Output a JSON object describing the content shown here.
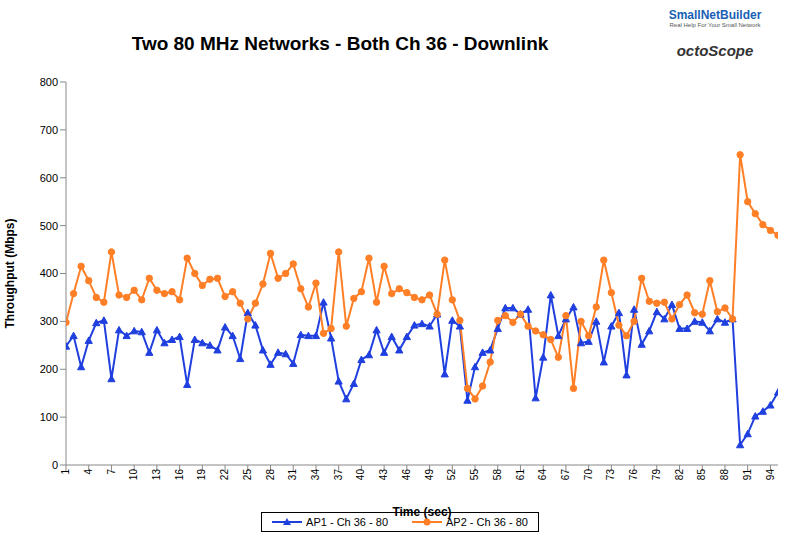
{
  "chart_data": {
    "type": "line",
    "title": "Two 80 MHz Networks - Both Ch 36 - Downlink",
    "x_label": "Time (sec)",
    "y_label": "Throughput (Mbps)",
    "annotations": [
      "SmallNetBuilder",
      "Real Help For Your Small Network",
      "octoScope"
    ],
    "x": [
      1,
      2,
      3,
      4,
      5,
      6,
      7,
      8,
      9,
      10,
      11,
      12,
      13,
      14,
      15,
      16,
      17,
      18,
      19,
      20,
      21,
      22,
      23,
      24,
      25,
      26,
      27,
      28,
      29,
      30,
      31,
      32,
      33,
      34,
      35,
      36,
      37,
      38,
      39,
      40,
      41,
      42,
      43,
      44,
      45,
      46,
      47,
      48,
      49,
      50,
      51,
      52,
      53,
      54,
      55,
      56,
      57,
      58,
      59,
      60,
      61,
      62,
      63,
      64,
      65,
      66,
      67,
      68,
      69,
      70,
      71,
      72,
      73,
      74,
      75,
      76,
      77,
      78,
      79,
      80,
      81,
      82,
      83,
      84,
      85,
      86,
      87,
      88,
      89,
      90,
      91,
      92,
      93,
      94,
      95
    ],
    "xlim": [
      1,
      95
    ],
    "xticks": [
      1,
      4,
      7,
      10,
      13,
      16,
      19,
      22,
      25,
      28,
      31,
      34,
      37,
      40,
      43,
      46,
      49,
      52,
      55,
      58,
      61,
      64,
      67,
      70,
      73,
      76,
      79,
      82,
      85,
      88,
      91,
      94
    ],
    "ylim": [
      0,
      800
    ],
    "yticks": [
      0,
      100,
      200,
      300,
      400,
      500,
      600,
      700,
      800
    ],
    "grid": false,
    "legend": "bottom",
    "series": [
      {
        "name": "AP1 - Ch 36 - 80",
        "color": "#1f3fdf",
        "marker": "triangle",
        "values": [
          248,
          270,
          205,
          260,
          297,
          302,
          180,
          282,
          270,
          280,
          278,
          235,
          282,
          255,
          262,
          268,
          168,
          262,
          255,
          250,
          240,
          288,
          270,
          222,
          318,
          292,
          240,
          210,
          235,
          232,
          212,
          272,
          270,
          270,
          340,
          265,
          175,
          138,
          170,
          220,
          230,
          282,
          235,
          268,
          240,
          268,
          292,
          295,
          290,
          315,
          190,
          302,
          290,
          135,
          205,
          235,
          240,
          285,
          328,
          328,
          315,
          325,
          140,
          225,
          355,
          270,
          305,
          330,
          255,
          258,
          300,
          215,
          290,
          318,
          188,
          325,
          252,
          280,
          320,
          305,
          335,
          285,
          285,
          300,
          298,
          280,
          305,
          298,
          305,
          42,
          65,
          102,
          112,
          125,
          152
        ]
      },
      {
        "name": "AP2 - Ch 36 - 80",
        "color": "#ff7f27",
        "marker": "circle",
        "values": [
          298,
          358,
          415,
          385,
          350,
          340,
          445,
          355,
          350,
          365,
          345,
          390,
          365,
          358,
          362,
          345,
          432,
          400,
          375,
          388,
          390,
          352,
          362,
          338,
          305,
          338,
          378,
          442,
          390,
          400,
          420,
          368,
          330,
          380,
          275,
          285,
          445,
          290,
          348,
          362,
          432,
          340,
          415,
          358,
          368,
          360,
          350,
          345,
          355,
          315,
          428,
          345,
          302,
          160,
          138,
          165,
          215,
          302,
          312,
          298,
          315,
          290,
          280,
          272,
          262,
          225,
          312,
          160,
          300,
          270,
          330,
          428,
          360,
          292,
          270,
          300,
          390,
          342,
          338,
          340,
          305,
          335,
          355,
          318,
          315,
          385,
          320,
          328,
          305,
          648,
          550,
          525,
          502,
          490,
          480
        ]
      }
    ]
  }
}
